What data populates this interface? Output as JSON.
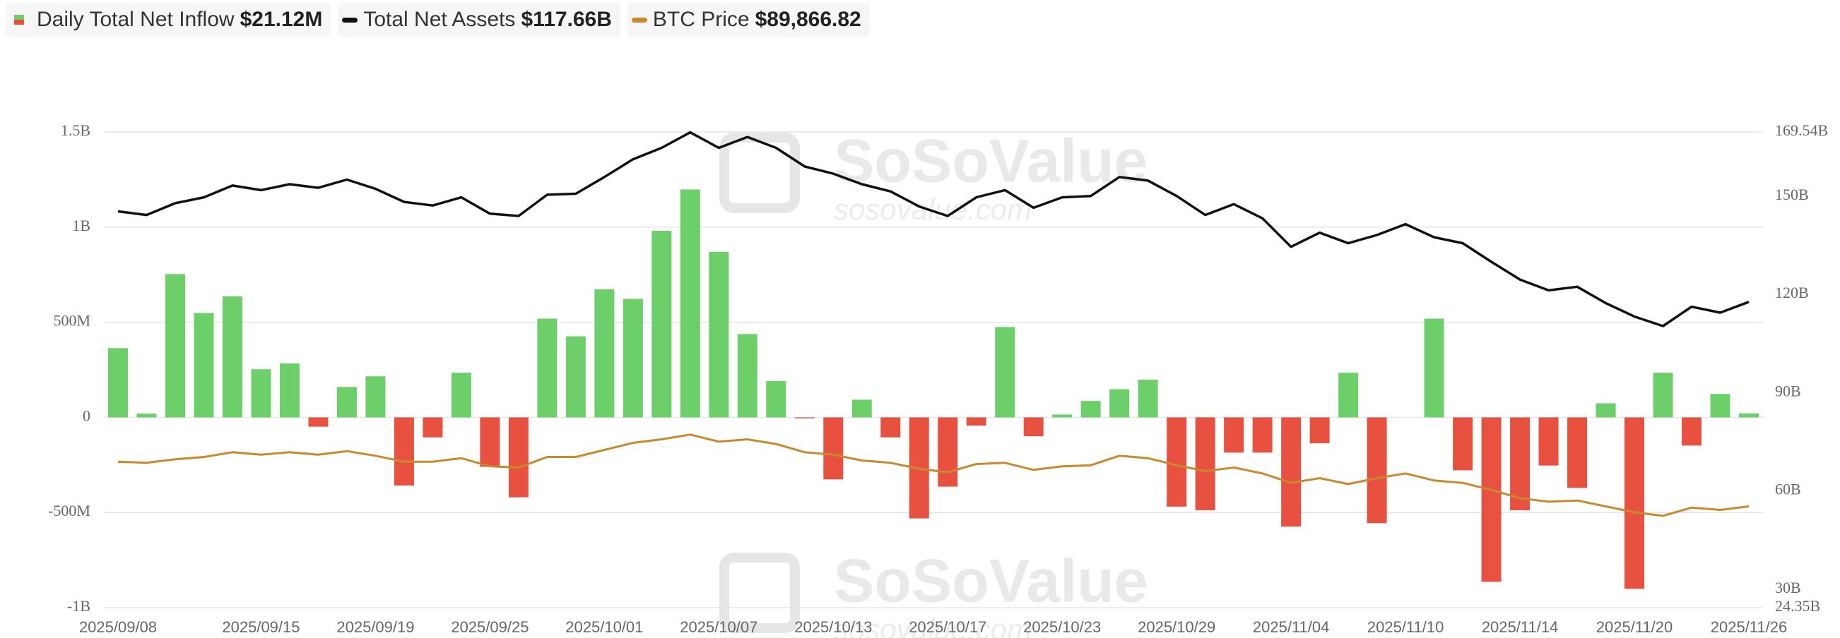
{
  "chart_data": {
    "type": "bar",
    "watermark": [
      "SoSoValue",
      "sosovalue.com"
    ],
    "categories": [
      "2025/09/08",
      null,
      null,
      null,
      null,
      "2025/09/15",
      null,
      null,
      null,
      "2025/09/19",
      null,
      null,
      null,
      "2025/09/25",
      null,
      null,
      null,
      "2025/10/01",
      null,
      null,
      null,
      "2025/10/07",
      null,
      null,
      null,
      "2025/10/13",
      null,
      null,
      null,
      "2025/10/17",
      null,
      null,
      null,
      "2025/10/23",
      null,
      null,
      null,
      "2025/10/29",
      null,
      null,
      null,
      "2025/11/04",
      null,
      null,
      null,
      "2025/11/10",
      null,
      null,
      null,
      "2025/11/14",
      null,
      null,
      null,
      "2025/11/20",
      null,
      null,
      null,
      "2025/11/26"
    ],
    "ylim": [
      -1000,
      1500
    ],
    "yticks": [
      {
        "value": -1000,
        "label": "-1B"
      },
      {
        "value": -500,
        "label": "-500M"
      },
      0,
      {
        "value": 500,
        "label": "500M"
      },
      {
        "value": 1000,
        "label": "1B"
      },
      {
        "value": 1500,
        "label": "1.5B"
      }
    ],
    "y2lim": [
      24.35,
      169.54
    ],
    "y2ticks": [
      {
        "value": 24.35,
        "label": "24.35B"
      },
      {
        "value": 30,
        "label": "30B"
      },
      {
        "value": 60,
        "label": "60B"
      },
      {
        "value": 90,
        "label": "90B"
      },
      {
        "value": 120,
        "label": "120B"
      },
      {
        "value": 150,
        "label": "150B"
      },
      {
        "value": 169.54,
        "label": "169.54B"
      }
    ],
    "y3lim": [
      41700,
      268000
    ],
    "grid": true,
    "series": [
      {
        "name": "Daily Total Net Inflow",
        "latest_label": "$21.12M",
        "type": "bar",
        "color": "#6ccf6a",
        "negative_color": "#e8513f",
        "values": [
          364,
          20,
          753,
          549,
          636,
          253,
          284,
          -49,
          160,
          216,
          -358,
          -105,
          235,
          -260,
          -420,
          519,
          426,
          673,
          623,
          981,
          1198,
          870,
          438,
          191,
          -5,
          -326,
          93,
          -105,
          -531,
          -364,
          -43,
          475,
          -99,
          15,
          86,
          148,
          198,
          -469,
          -488,
          -185,
          -185,
          -574,
          -136,
          235,
          -556,
          0,
          519,
          -278,
          -864,
          -488,
          -253,
          -370,
          74,
          -901,
          235,
          -148,
          123,
          21.12
        ]
      },
      {
        "name": "Total Net Assets",
        "latest_label": "$117.66B",
        "type": "line",
        "axis": "y2",
        "color": "#111111",
        "values": [
          145.3,
          144.2,
          147.8,
          149.6,
          153.2,
          151.8,
          153.6,
          152.5,
          155.0,
          152.2,
          148.2,
          147.1,
          149.6,
          144.6,
          143.9,
          150.4,
          150.7,
          155.8,
          161.2,
          164.7,
          169.4,
          164.7,
          168.0,
          164.7,
          159.0,
          156.8,
          153.6,
          151.4,
          146.8,
          143.9,
          149.6,
          151.8,
          146.4,
          149.6,
          150.0,
          155.8,
          154.7,
          150.0,
          144.2,
          147.5,
          143.2,
          134.5,
          138.8,
          135.6,
          138.1,
          141.4,
          137.4,
          135.6,
          129.9,
          124.5,
          121.2,
          122.3,
          117.3,
          113.2,
          110.3,
          116.2,
          114.4,
          117.66
        ]
      },
      {
        "name": "BTC Price",
        "latest_label": "$89,866.82",
        "type": "line",
        "axis": "y3",
        "color": "#c8892e",
        "values": [
          111147,
          110587,
          112267,
          113387,
          115627,
          114507,
          115627,
          114507,
          116187,
          113947,
          111147,
          111147,
          112827,
          108907,
          108347,
          113387,
          113387,
          116747,
          120107,
          121787,
          124027,
          120667,
          121787,
          119547,
          115627,
          114507,
          111707,
          110587,
          107787,
          106107,
          110027,
          110587,
          107227,
          108907,
          109467,
          113947,
          112827,
          109467,
          106667,
          108347,
          105547,
          101067,
          103307,
          100507,
          103307,
          105547,
          102187,
          101067,
          97707,
          93787,
          92107,
          92667,
          89867,
          87067,
          85387,
          89307,
          88187,
          89866.82
        ]
      }
    ]
  }
}
